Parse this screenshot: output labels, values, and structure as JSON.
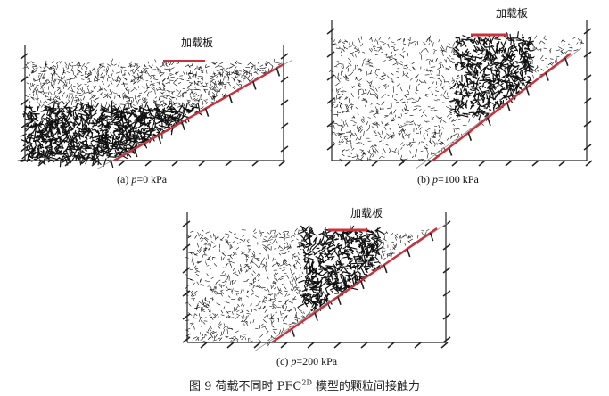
{
  "panels": [
    {
      "id": "a",
      "caption_prefix": "(a) ",
      "caption_var": "p",
      "caption_value": "=0 kPa",
      "plate_label": "加载板"
    },
    {
      "id": "b",
      "caption_prefix": "(b) ",
      "caption_var": "p",
      "caption_value": "=100 kPa",
      "plate_label": "加载板"
    },
    {
      "id": "c",
      "caption_prefix": "(c) ",
      "caption_var": "p",
      "caption_value": "=200 kPa",
      "plate_label": "加载板"
    }
  ],
  "figure_caption": {
    "number": "图 9",
    "text_before": "荷载不同时 PFC",
    "superscript": "2D",
    "text_after": " 模型的颗粒间接触力"
  },
  "colors": {
    "force_chain": "#111111",
    "wall": "#c8323c",
    "boundary": "#222222",
    "slope_line": "#999999"
  }
}
